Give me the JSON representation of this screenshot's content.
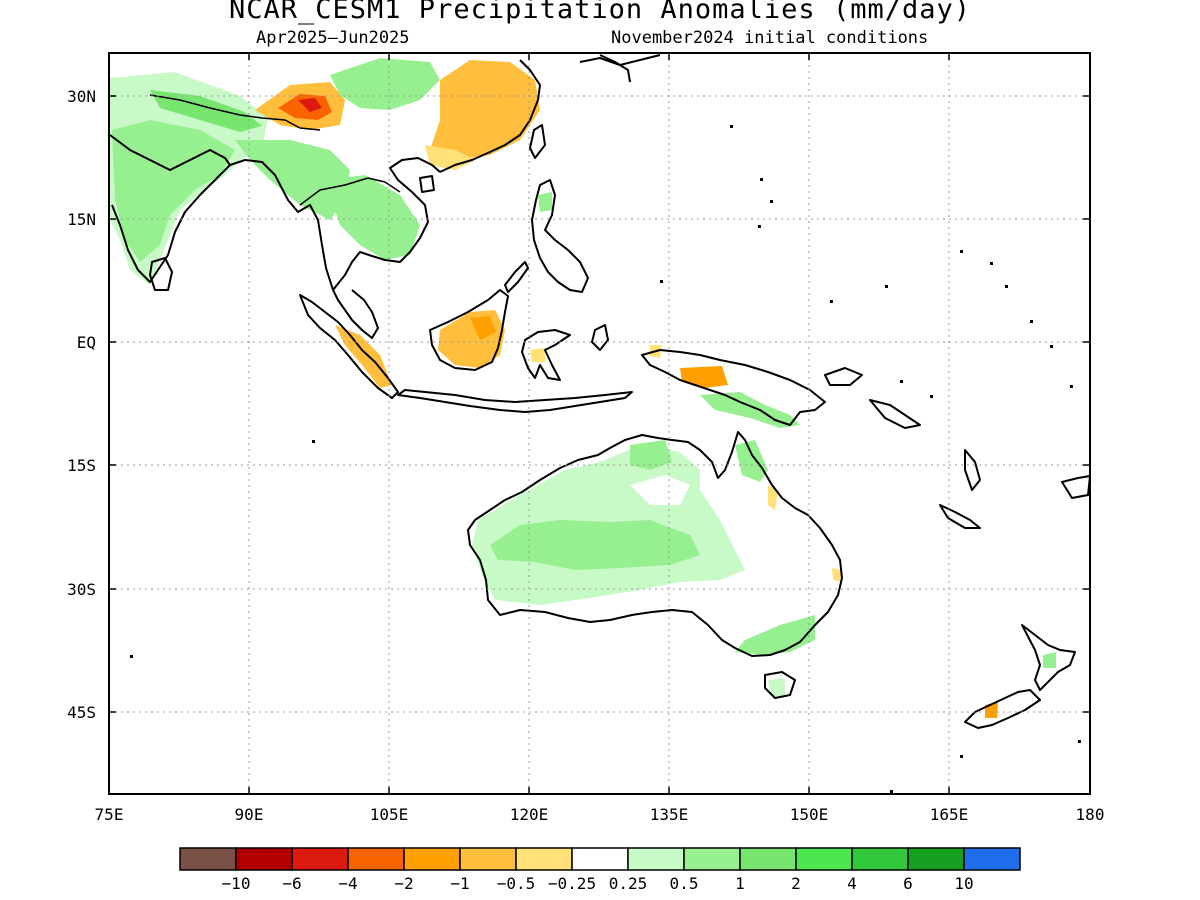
{
  "title": "NCAR_CESM1 Precipitation Anomalies (mm/day)",
  "subtitle_left": "Apr2025–Jun2025",
  "subtitle_right": "November2024 initial conditions",
  "axes": {
    "lat_labels": [
      "30N",
      "15N",
      "EQ",
      "15S",
      "30S",
      "45S"
    ],
    "lon_labels": [
      "75E",
      "90E",
      "105E",
      "120E",
      "135E",
      "150E",
      "165E",
      "180"
    ]
  },
  "colorbar": {
    "colors": [
      "#7a4f45",
      "#b20000",
      "#dc1a10",
      "#fa6400",
      "#ffa000",
      "#ffbe3c",
      "#ffe178",
      "#ffffff",
      "#c8fac8",
      "#96f090",
      "#78e66e",
      "#4be650",
      "#32c83c",
      "#14a01e",
      "#1e6eeb"
    ],
    "labels": [
      "−10",
      "−6",
      "−4",
      "−2",
      "−1",
      "−0.5",
      "−0.25",
      "0.25",
      "0.5",
      "1",
      "2",
      "4",
      "6",
      "10"
    ]
  }
}
